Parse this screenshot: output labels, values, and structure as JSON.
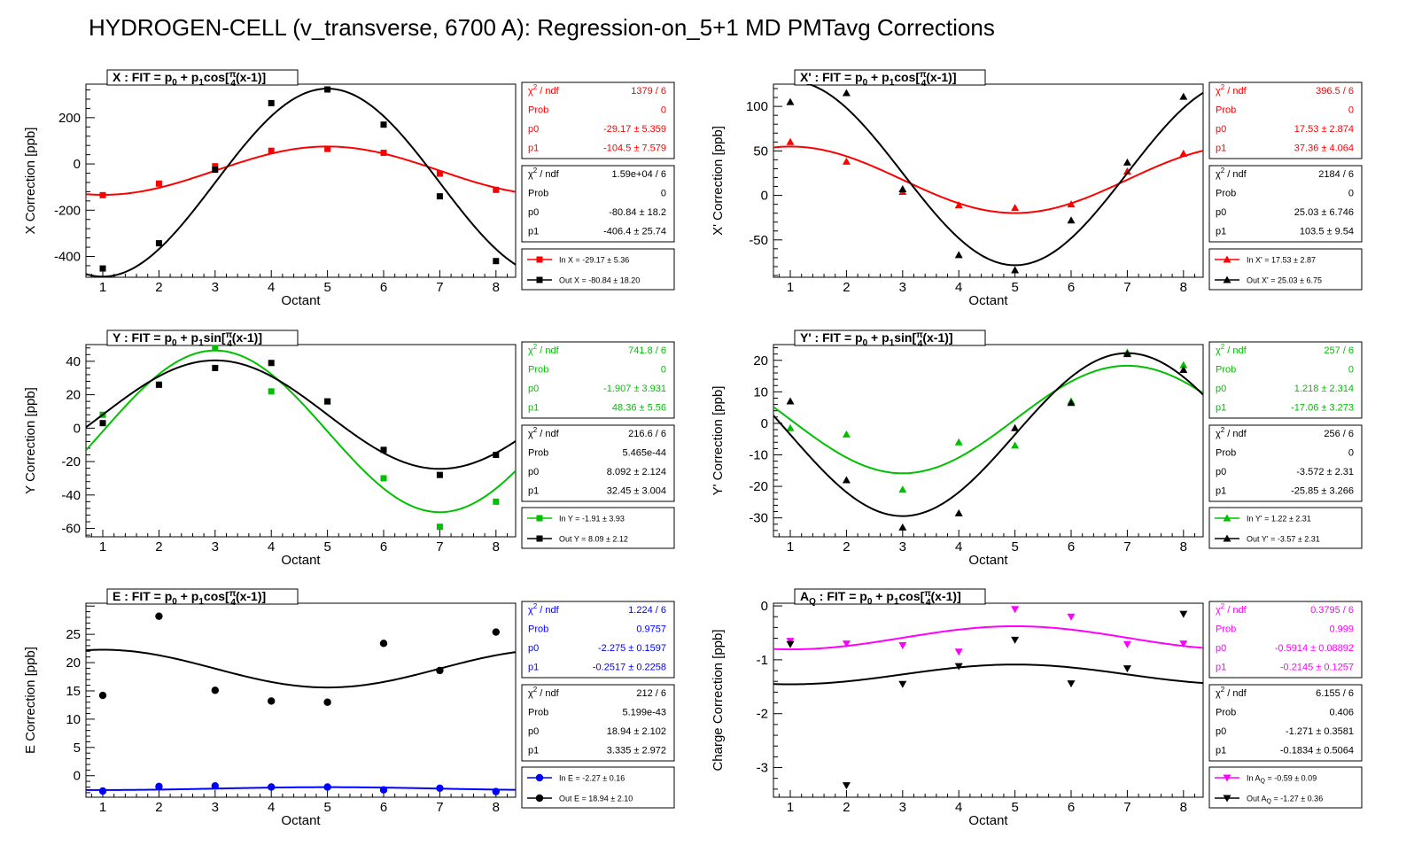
{
  "title": "HYDROGEN-CELL (v_transverse, 6700 A): Regression-on_5+1 MD PMTavg Corrections",
  "colors": {
    "black": "#000000",
    "red": "#ff0000",
    "green": "#00c000",
    "blue": "#0000ff",
    "magenta": "#ff00ff"
  },
  "chart_data": [
    {
      "id": "x",
      "type": "scatter",
      "panel_title": "X : FIT = p0 + p1cos[π/4(x-1)]",
      "title_parts": {
        "lead": "X : FIT = p",
        "s0": "0",
        "mid": " + p",
        "s1": "1",
        "fn": "cos[",
        "frac_top": "π",
        "frac_bot": "4",
        "tail": "(x-1)]"
      },
      "xlabel": "Octant",
      "ylabel": "X Correction [ppb]",
      "xlim": [
        0.7,
        8.35
      ],
      "ylim": [
        -490,
        345
      ],
      "yticks": [
        -400,
        -200,
        0,
        200
      ],
      "xticks": [
        1,
        2,
        3,
        4,
        5,
        6,
        7,
        8
      ],
      "marker": "square",
      "fit": "cos",
      "series": [
        {
          "name": "In X = -29.17 ± 5.36",
          "color": "#ff0000",
          "x": [
            1,
            2,
            3,
            4,
            5,
            6,
            7,
            8
          ],
          "y": [
            -135,
            -85,
            -10,
            57,
            65,
            48,
            -42,
            -112
          ],
          "p0": -29.17,
          "p1": -104.5,
          "stats": [
            [
              "χ2 / ndf",
              "1379 / 6"
            ],
            [
              "Prob",
              "0"
            ],
            [
              "p0",
              "-29.17 ± 5.359"
            ],
            [
              "p1",
              "-104.5 ± 7.579"
            ]
          ]
        },
        {
          "name": "Out X = -80.84 ± 18.20",
          "color": "#000000",
          "x": [
            1,
            2,
            3,
            4,
            5,
            6,
            7,
            8
          ],
          "y": [
            -452,
            -343,
            -25,
            263,
            322,
            170,
            -140,
            -420
          ],
          "p0": -80.84,
          "p1": -406.4,
          "stats": [
            [
              "χ2 / ndf",
              "1.59e+04 / 6"
            ],
            [
              "Prob",
              "0"
            ],
            [
              "p0",
              "-80.84 ±  18.2"
            ],
            [
              "p1",
              "-406.4 ± 25.74"
            ]
          ]
        }
      ]
    },
    {
      "id": "xp",
      "type": "scatter",
      "panel_title": "X' : FIT = p0 + p1cos[π/4(x-1)]",
      "title_parts": {
        "lead": "X' : FIT = p",
        "s0": "0",
        "mid": " + p",
        "s1": "1",
        "fn": "cos[",
        "frac_top": "π",
        "frac_bot": "4",
        "tail": "(x-1)]"
      },
      "xlabel": "Octant",
      "ylabel": "X' Correction [ppb]",
      "xlim": [
        0.7,
        8.35
      ],
      "ylim": [
        -92,
        125
      ],
      "yticks": [
        -50,
        0,
        50,
        100
      ],
      "xticks": [
        1,
        2,
        3,
        4,
        5,
        6,
        7,
        8
      ],
      "marker": "triangle-up",
      "fit": "cos",
      "series": [
        {
          "name": "In X' = 17.53 ± 2.87",
          "color": "#ff0000",
          "x": [
            1,
            2,
            3,
            4,
            5,
            6,
            7,
            8
          ],
          "y": [
            60,
            38,
            4,
            -11,
            -14,
            -10,
            27,
            47
          ],
          "p0": 17.53,
          "p1": 37.36,
          "stats": [
            [
              "χ2 / ndf",
              "396.5 / 6"
            ],
            [
              "Prob",
              "0"
            ],
            [
              "p0",
              "17.53 ± 2.874"
            ],
            [
              "p1",
              "37.36 ± 4.064"
            ]
          ]
        },
        {
          "name": "Out X' = 25.03 ± 6.75",
          "color": "#000000",
          "x": [
            1,
            2,
            3,
            4,
            5,
            6,
            7,
            8
          ],
          "y": [
            105,
            115,
            7,
            -67,
            -84,
            -28,
            37,
            111
          ],
          "p0": 25.03,
          "p1": 103.5,
          "stats": [
            [
              "χ2 / ndf",
              "2184 / 6"
            ],
            [
              "Prob",
              "0"
            ],
            [
              "p0",
              "25.03 ± 6.746"
            ],
            [
              "p1",
              "103.5 ±  9.54"
            ]
          ]
        }
      ]
    },
    {
      "id": "y",
      "type": "scatter",
      "panel_title": "Y : FIT = p0 + p1sin[π/4(x-1)]",
      "title_parts": {
        "lead": "Y : FIT = p",
        "s0": "0",
        "mid": " + p",
        "s1": "1",
        "fn": "sin[",
        "frac_top": "π",
        "frac_bot": "4",
        "tail": "(x-1)]"
      },
      "xlabel": "Octant",
      "ylabel": "Y Correction [ppb]",
      "xlim": [
        0.7,
        8.35
      ],
      "ylim": [
        -65,
        50
      ],
      "yticks": [
        -60,
        -40,
        -20,
        0,
        20,
        40
      ],
      "xticks": [
        1,
        2,
        3,
        4,
        5,
        6,
        7,
        8
      ],
      "marker": "square",
      "fit": "sin",
      "series": [
        {
          "name": "In Y = -1.91 ± 3.93",
          "color": "#00c000",
          "x": [
            1,
            2,
            3,
            4,
            5,
            6,
            7,
            8
          ],
          "y": [
            8,
            26,
            48,
            22,
            16,
            -30,
            -59,
            -44
          ],
          "p0": -1.907,
          "p1": 48.36,
          "stats": [
            [
              "χ2 / ndf",
              "741.8 / 6"
            ],
            [
              "Prob",
              "0"
            ],
            [
              "p0",
              "-1.907 ± 3.931"
            ],
            [
              "p1",
              "48.36 ±  5.56"
            ]
          ]
        },
        {
          "name": "Out Y = 8.09 ± 2.12",
          "color": "#000000",
          "x": [
            1,
            2,
            3,
            4,
            5,
            6,
            7,
            8
          ],
          "y": [
            3,
            26,
            36,
            39,
            16,
            -13,
            -28,
            -16
          ],
          "p0": 8.092,
          "p1": 32.45,
          "stats": [
            [
              "χ2 / ndf",
              "216.6 / 6"
            ],
            [
              "Prob",
              "5.465e-44"
            ],
            [
              "p0",
              "8.092 ± 2.124"
            ],
            [
              "p1",
              "32.45 ± 3.004"
            ]
          ]
        }
      ]
    },
    {
      "id": "yp",
      "type": "scatter",
      "panel_title": "Y' : FIT = p0 + p1sin[π/4(x-1)]",
      "title_parts": {
        "lead": "Y' : FIT = p",
        "s0": "0",
        "mid": " + p",
        "s1": "1",
        "fn": "sin[",
        "frac_top": "π",
        "frac_bot": "4",
        "tail": "(x-1)]"
      },
      "xlabel": "Octant",
      "ylabel": "Y' Correction [ppb]",
      "xlim": [
        0.7,
        8.35
      ],
      "ylim": [
        -36,
        25
      ],
      "yticks": [
        -30,
        -20,
        -10,
        0,
        10,
        20
      ],
      "xticks": [
        1,
        2,
        3,
        4,
        5,
        6,
        7,
        8
      ],
      "marker": "triangle-up",
      "fit": "sin",
      "series": [
        {
          "name": "In Y' = 1.22 ± 2.31",
          "color": "#00c000",
          "x": [
            1,
            2,
            3,
            4,
            5,
            6,
            7,
            8
          ],
          "y": [
            -1.5,
            -3.5,
            -21,
            -6,
            -7,
            7,
            22.5,
            18.5
          ],
          "p0": 1.218,
          "p1": -17.06,
          "stats": [
            [
              "χ2 / ndf",
              "257 / 6"
            ],
            [
              "Prob",
              "0"
            ],
            [
              "p0",
              "1.218 ± 2.314"
            ],
            [
              "p1",
              "-17.06 ± 3.273"
            ]
          ]
        },
        {
          "name": "Out Y' = -3.57 ± 2.31",
          "color": "#000000",
          "x": [
            1,
            2,
            3,
            4,
            5,
            6,
            7,
            8
          ],
          "y": [
            7,
            -18,
            -33,
            -28.5,
            -1.5,
            6.5,
            22,
            17
          ],
          "p0": -3.572,
          "p1": -25.85,
          "stats": [
            [
              "χ2 / ndf",
              "256 / 6"
            ],
            [
              "Prob",
              "0"
            ],
            [
              "p0",
              "-3.572 ±  2.31"
            ],
            [
              "p1",
              "-25.85 ± 3.266"
            ]
          ]
        }
      ]
    },
    {
      "id": "e",
      "type": "scatter",
      "panel_title": "E : FIT = p0 + p1cos[π/4(x-1)]",
      "title_parts": {
        "lead": "E : FIT = p",
        "s0": "0",
        "mid": " + p",
        "s1": "1",
        "fn": "cos[",
        "frac_top": "π",
        "frac_bot": "4",
        "tail": "(x-1)]"
      },
      "xlabel": "Octant",
      "ylabel": "E Correction [ppb]",
      "xlim": [
        0.7,
        8.35
      ],
      "ylim": [
        -3.8,
        30.5
      ],
      "yticks": [
        0,
        5,
        10,
        15,
        20,
        25
      ],
      "xticks": [
        1,
        2,
        3,
        4,
        5,
        6,
        7,
        8
      ],
      "marker": "circle",
      "fit": "cos",
      "series": [
        {
          "name": "In E = -2.27 ± 0.16",
          "color": "#0000ff",
          "x": [
            1,
            2,
            3,
            4,
            5,
            6,
            7,
            8
          ],
          "y": [
            -2.7,
            -1.9,
            -1.8,
            -2.0,
            -2.0,
            -2.5,
            -2.2,
            -2.8
          ],
          "p0": -2.275,
          "p1": -0.2517,
          "stats": [
            [
              "χ2 / ndf",
              "1.224 / 6"
            ],
            [
              "Prob",
              "0.9757"
            ],
            [
              "p0",
              "-2.275 ± 0.1597"
            ],
            [
              "p1",
              "-0.2517 ± 0.2258"
            ]
          ]
        },
        {
          "name": "Out E = 18.94 ± 2.10",
          "color": "#000000",
          "x": [
            1,
            2,
            3,
            4,
            5,
            6,
            7,
            8
          ],
          "y": [
            14.2,
            28.2,
            15.1,
            13.2,
            13.0,
            23.4,
            18.6,
            25.4
          ],
          "p0": 18.94,
          "p1": 3.335,
          "stats": [
            [
              "χ2 / ndf",
              "212 / 6"
            ],
            [
              "Prob",
              "5.199e-43"
            ],
            [
              "p0",
              "18.94 ± 2.102"
            ],
            [
              "p1",
              "3.335 ± 2.972"
            ]
          ]
        }
      ]
    },
    {
      "id": "aq",
      "type": "scatter",
      "panel_title": "AQ : FIT = p0 + p1cos[π/4(x-1)]",
      "title_parts": {
        "lead": "A",
        "lead_sub": "Q",
        "lead2": " : FIT = p",
        "s0": "0",
        "mid": " + p",
        "s1": "1",
        "fn": "cos[",
        "frac_top": "π",
        "frac_bot": "4",
        "tail": "(x-1)]"
      },
      "xlabel": "Octant",
      "ylabel": "Charge Correction [ppb]",
      "xlim": [
        0.7,
        8.35
      ],
      "ylim": [
        -3.55,
        0.05
      ],
      "yticks": [
        -3,
        -2,
        -1,
        0
      ],
      "xticks": [
        1,
        2,
        3,
        4,
        5,
        6,
        7,
        8
      ],
      "marker": "triangle-down",
      "fit": "cos",
      "series": [
        {
          "name": "In AQ = -0.59 ± 0.09",
          "name_parts": [
            "In A",
            "Q",
            " = -0.59 ± 0.09"
          ],
          "color": "#ff00ff",
          "x": [
            1,
            2,
            3,
            4,
            5,
            6,
            7,
            8
          ],
          "y": [
            -0.65,
            -0.7,
            -0.73,
            -0.85,
            -0.06,
            -0.2,
            -0.71,
            -0.7
          ],
          "p0": -0.5914,
          "p1": -0.2145,
          "stats": [
            [
              "χ2 / ndf",
              "0.3795 / 6"
            ],
            [
              "Prob",
              "0.999"
            ],
            [
              "p0",
              "-0.5914 ± 0.08892"
            ],
            [
              "p1",
              "-0.2145 ± 0.1257"
            ]
          ]
        },
        {
          "name": "Out AQ = -1.27 ± 0.36",
          "name_parts": [
            "Out A",
            "Q",
            " = -1.27 ± 0.36"
          ],
          "color": "#000000",
          "x": [
            1,
            2,
            3,
            4,
            5,
            6,
            7,
            8
          ],
          "y": [
            -0.71,
            -3.33,
            -1.45,
            -1.12,
            -0.63,
            -1.44,
            -1.16,
            -0.15
          ],
          "p0": -1.271,
          "p1": -0.1834,
          "stats": [
            [
              "χ2 / ndf",
              "6.155 / 6"
            ],
            [
              "Prob",
              "0.406"
            ],
            [
              "p0",
              "-1.271 ± 0.3581"
            ],
            [
              "p1",
              "-0.1834 ± 0.5064"
            ]
          ]
        }
      ]
    }
  ]
}
